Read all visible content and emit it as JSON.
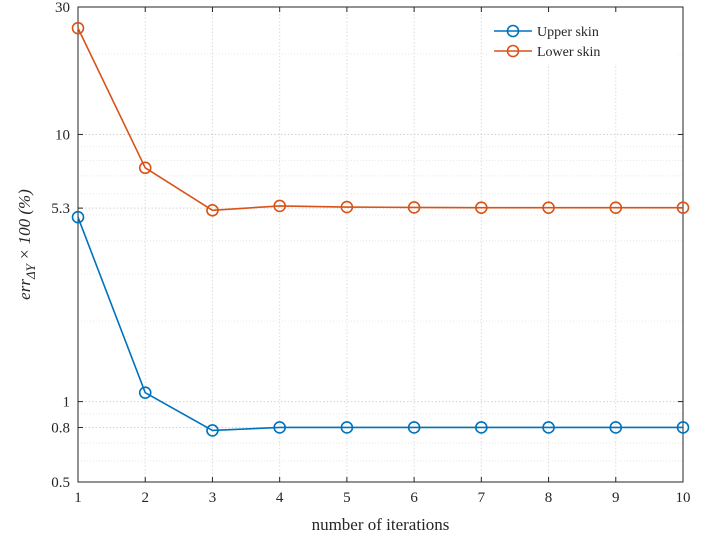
{
  "chart_data": {
    "type": "line",
    "title": "",
    "xlabel": "number of iterations",
    "ylabel": {
      "base": "err",
      "subscript": "ΔY",
      "rest": "× 100 (%)"
    },
    "x": [
      1,
      2,
      3,
      4,
      5,
      6,
      7,
      8,
      9,
      10
    ],
    "xlim": [
      1,
      10
    ],
    "ylim": [
      0.5,
      30
    ],
    "yscale": "log",
    "x_ticks": [
      "1",
      "2",
      "3",
      "4",
      "5",
      "6",
      "7",
      "8",
      "9",
      "10"
    ],
    "y_ticks": [
      {
        "value": 0.5,
        "label": "0.5"
      },
      {
        "value": 0.8,
        "label": "0.8"
      },
      {
        "value": 1,
        "label": "1"
      },
      {
        "value": 5.3,
        "label": "5.3"
      },
      {
        "value": 10,
        "label": "10"
      },
      {
        "value": 30,
        "label": "30"
      }
    ],
    "grid": true,
    "legend_position": "top-right",
    "series": [
      {
        "name": "Upper skin",
        "color": "#0072BD",
        "marker": "circle",
        "values": [
          4.9,
          1.08,
          0.78,
          0.8,
          0.8,
          0.8,
          0.8,
          0.8,
          0.8,
          0.8
        ]
      },
      {
        "name": "Lower skin",
        "color": "#D95319",
        "marker": "circle",
        "values": [
          25.0,
          7.5,
          5.2,
          5.4,
          5.35,
          5.33,
          5.32,
          5.32,
          5.32,
          5.32
        ]
      }
    ]
  }
}
